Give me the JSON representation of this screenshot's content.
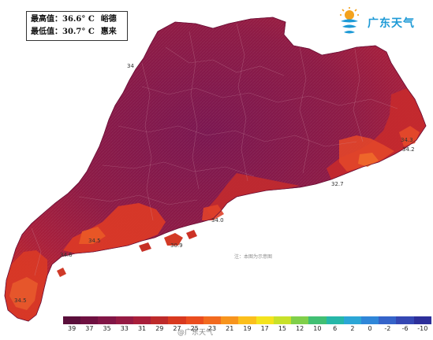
{
  "stats": {
    "max_label": "最高值：",
    "max_value": "36.6° C",
    "max_place": "峪德",
    "min_label": "最低值：",
    "min_value": "30.7° C",
    "min_place": "惠来"
  },
  "brand": {
    "name": "广东天气",
    "logo_icon": "sun-cloud-wave-logo"
  },
  "note": "注：本图为示意图",
  "watermark": "@广东天气",
  "legend": {
    "labels": [
      "39",
      "37",
      "35",
      "33",
      "31",
      "29",
      "27",
      "25",
      "23",
      "21",
      "19",
      "17",
      "15",
      "12",
      "10",
      "6",
      "2",
      "0",
      "-2",
      "-6",
      "-10"
    ],
    "colors": [
      "#5a0f3b",
      "#6e1040",
      "#811546",
      "#951a43",
      "#a81e3a",
      "#bd2a2a",
      "#d8391f",
      "#ea4d1f",
      "#f26a1f",
      "#f7941d",
      "#fbbf1c",
      "#f4e31d",
      "#c8e12a",
      "#80cf4a",
      "#41bf73",
      "#26b7a8",
      "#2ba6d6",
      "#2f86d8",
      "#3563c9",
      "#3547b3",
      "#2d2f9a"
    ]
  },
  "map_labels": [
    {
      "text": "34"
    },
    {
      "text": "34.2"
    },
    {
      "text": "32.7"
    },
    {
      "text": "34.3"
    },
    {
      "text": "34.0"
    },
    {
      "text": "30.9"
    },
    {
      "text": "34.5"
    },
    {
      "text": "34.6"
    },
    {
      "text": "34.5"
    }
  ],
  "colors": {
    "hot_core": "#8a1745",
    "hot_mid": "#a81e3a",
    "warm_coast": "#d8391f",
    "coast_orange": "#ea5a20"
  }
}
